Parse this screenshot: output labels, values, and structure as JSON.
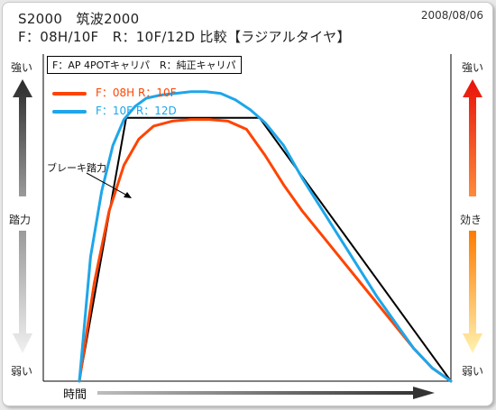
{
  "title_line1": "S2000　筑波2000",
  "title_line2": "F：08H/10F　R：10F/12D  比較【ラジアルタイヤ】",
  "date": "2008/08/06",
  "spec_box": "F：AP 4POTキャリパ　R：純正キャリパ",
  "left_axis": {
    "top": "強い",
    "middle": "踏力",
    "bottom": "弱い"
  },
  "right_axis": {
    "top": "強い",
    "middle": "効き",
    "bottom": "弱い"
  },
  "annotation": "ブレーキ踏力",
  "colors": {
    "red": "#ff4400",
    "blue": "#1ea6ea",
    "pedal": "#000000"
  },
  "chart_data": {
    "type": "line",
    "xlabel": "時間",
    "ylabel": "",
    "xlim": [
      0,
      100
    ],
    "ylim": [
      0,
      100
    ],
    "grid": false,
    "legend_position": "top-left",
    "series": [
      {
        "name": "F：08H  R：10F",
        "color": "#ff4400",
        "x": [
          0,
          4,
          8,
          12,
          16,
          20,
          25,
          30,
          35,
          40,
          45,
          50,
          55,
          60,
          65,
          70,
          75,
          80,
          85,
          90,
          95,
          100
        ],
        "y": [
          0,
          30,
          52,
          66,
          74,
          78,
          79.5,
          80,
          80,
          79.5,
          77,
          69,
          60,
          52,
          45,
          38,
          31,
          24,
          17,
          10,
          4,
          0
        ]
      },
      {
        "name": "F：10F  R：12D",
        "color": "#1ea6ea",
        "x": [
          0,
          3,
          6,
          9,
          12,
          15,
          18,
          22,
          26,
          30,
          34,
          38,
          42,
          46,
          50,
          55,
          60,
          65,
          70,
          75,
          80,
          85,
          90,
          95,
          100
        ],
        "y": [
          0,
          38,
          58,
          72,
          80,
          84,
          86.5,
          87.5,
          88,
          88.5,
          88.5,
          88,
          86,
          83,
          79,
          72,
          62,
          53,
          44,
          35,
          26,
          18,
          10,
          4,
          0
        ]
      },
      {
        "name": "",
        "color": "#000000",
        "x": [
          0,
          12.6,
          48.5,
          100
        ],
        "y": [
          0,
          80.5,
          80.5,
          0
        ]
      }
    ]
  }
}
